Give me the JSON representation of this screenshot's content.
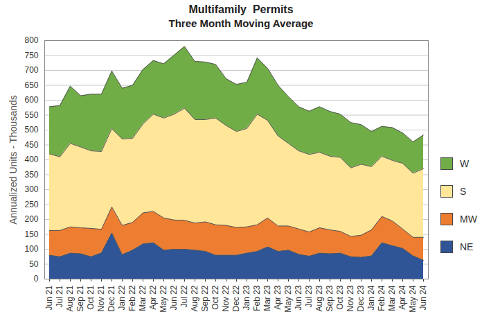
{
  "chart_data": {
    "type": "area",
    "title": "Multifamily  Permits",
    "subtitle": "Three Month Moving Average",
    "ylabel": "Annualized Units - Thousands",
    "categories": [
      "Jun 21",
      "Jul 21",
      "Aug 21",
      "Sep 21",
      "Oct 21",
      "Nov 21",
      "Dec 21",
      "Jan 22",
      "Feb 22",
      "Mar 22",
      "Apr 22",
      "May 22",
      "Jun 22",
      "Jul 22",
      "Aug 22",
      "Sep 22",
      "Oct 22",
      "Nov 22",
      "Dec 22",
      "Jan 23",
      "Feb 23",
      "Mar 23",
      "Apr 23",
      "May 23",
      "Jun 23",
      "Jul 23",
      "Aug 23",
      "Sep 23",
      "Oct 23",
      "Nov 23",
      "Dec 23",
      "Jan 24",
      "Feb 24",
      "Mar 24",
      "Apr 24",
      "May 24",
      "Jun 24"
    ],
    "series": [
      {
        "name": "NE",
        "color": "#2f5597",
        "values": [
          80,
          75,
          87,
          85,
          75,
          88,
          155,
          82,
          97,
          118,
          122,
          97,
          100,
          100,
          97,
          93,
          80,
          80,
          80,
          87,
          93,
          108,
          93,
          97,
          83,
          77,
          87,
          85,
          87,
          75,
          73,
          78,
          122,
          112,
          103,
          78,
          63
        ]
      },
      {
        "name": "MW",
        "color": "#ed7d31",
        "values": [
          83,
          88,
          88,
          87,
          95,
          79,
          87,
          98,
          93,
          104,
          105,
          108,
          98,
          97,
          91,
          99,
          102,
          100,
          93,
          88,
          89,
          97,
          85,
          81,
          85,
          81,
          85,
          80,
          73,
          68,
          74,
          87,
          88,
          83,
          65,
          62,
          77
        ]
      },
      {
        "name": "S",
        "color": "#ffe699",
        "values": [
          257,
          247,
          280,
          271,
          260,
          261,
          263,
          290,
          282,
          298,
          326,
          335,
          355,
          376,
          347,
          343,
          358,
          335,
          322,
          330,
          371,
          327,
          302,
          277,
          262,
          260,
          253,
          247,
          248,
          230,
          238,
          212,
          202,
          203,
          220,
          215,
          230
        ]
      },
      {
        "name": "W",
        "color": "#70ad47",
        "values": [
          158,
          172,
          192,
          172,
          190,
          192,
          193,
          170,
          178,
          183,
          180,
          182,
          198,
          207,
          195,
          193,
          180,
          157,
          158,
          155,
          189,
          175,
          170,
          157,
          148,
          145,
          153,
          150,
          145,
          152,
          133,
          118,
          100,
          110,
          102,
          105,
          113
        ]
      }
    ],
    "ylim": [
      0,
      800
    ],
    "yticks": [
      0,
      50,
      100,
      150,
      200,
      250,
      300,
      350,
      400,
      450,
      500,
      550,
      600,
      650,
      700,
      750,
      800
    ],
    "stacked": true,
    "grid": true,
    "legend": "right"
  }
}
